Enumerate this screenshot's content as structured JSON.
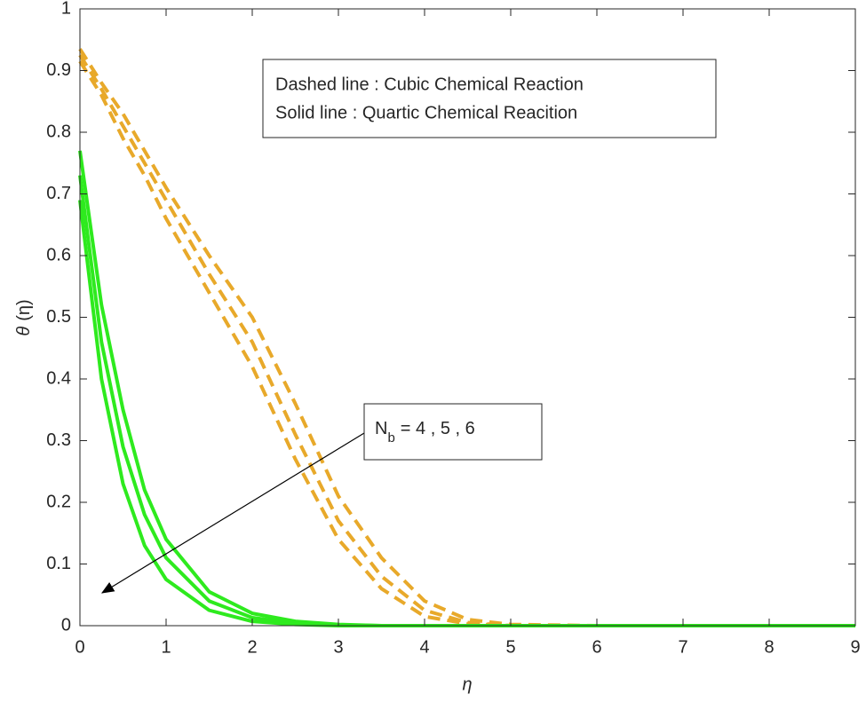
{
  "chart_data": {
    "type": "line",
    "x_label": "η",
    "y_label": {
      "symbol": "θ",
      "argument": "(η)"
    },
    "annotations": [
      {
        "text": "Dashed line : Cubic Chemical Reaction"
      },
      {
        "text": "Solid line : Quartic Chemical Reacition"
      },
      {
        "text": "N",
        "subscript": "b",
        "suffix": "= 4 , 5 , 6"
      }
    ],
    "x": [
      0,
      0.25,
      0.5,
      0.75,
      1,
      1.5,
      2,
      2.5,
      3,
      3.5,
      4,
      4.5,
      5,
      6,
      7,
      8,
      9
    ],
    "series": [
      {
        "color": "#e8a92a",
        "style": "dashed",
        "values": [
          0.935,
          0.88,
          0.83,
          0.77,
          0.71,
          0.6,
          0.5,
          0.36,
          0.21,
          0.11,
          0.04,
          0.01,
          0.002,
          0,
          0,
          0,
          0
        ]
      },
      {
        "color": "#e8a92a",
        "style": "dashed",
        "values": [
          0.925,
          0.87,
          0.81,
          0.75,
          0.69,
          0.57,
          0.46,
          0.31,
          0.17,
          0.08,
          0.025,
          0.005,
          0,
          0,
          0,
          0,
          0
        ]
      },
      {
        "color": "#e8a92a",
        "style": "dashed",
        "values": [
          0.915,
          0.86,
          0.79,
          0.73,
          0.66,
          0.54,
          0.42,
          0.27,
          0.14,
          0.06,
          0.015,
          0.003,
          0,
          0,
          0,
          0,
          0
        ]
      },
      {
        "color": "#2eea1e",
        "style": "solid",
        "values": [
          0.77,
          0.52,
          0.35,
          0.22,
          0.14,
          0.055,
          0.02,
          0.007,
          0.002,
          0,
          0,
          0,
          0,
          0,
          0,
          0,
          0
        ]
      },
      {
        "color": "#2eea1e",
        "style": "solid",
        "values": [
          0.73,
          0.46,
          0.29,
          0.18,
          0.11,
          0.04,
          0.013,
          0.004,
          0.001,
          0,
          0,
          0,
          0,
          0,
          0,
          0,
          0
        ]
      },
      {
        "color": "#2eea1e",
        "style": "solid",
        "values": [
          0.69,
          0.4,
          0.23,
          0.13,
          0.075,
          0.025,
          0.007,
          0.002,
          0,
          0,
          0,
          0,
          0,
          0,
          0,
          0,
          0
        ]
      }
    ],
    "xlim": [
      0,
      9
    ],
    "xticks": [
      0,
      1,
      2,
      3,
      4,
      5,
      6,
      7,
      8,
      9
    ],
    "ylim": [
      0,
      1
    ],
    "yticks": [
      0,
      0.1,
      0.2,
      0.3,
      0.4,
      0.5,
      0.6,
      0.7,
      0.8,
      0.9,
      1
    ]
  }
}
